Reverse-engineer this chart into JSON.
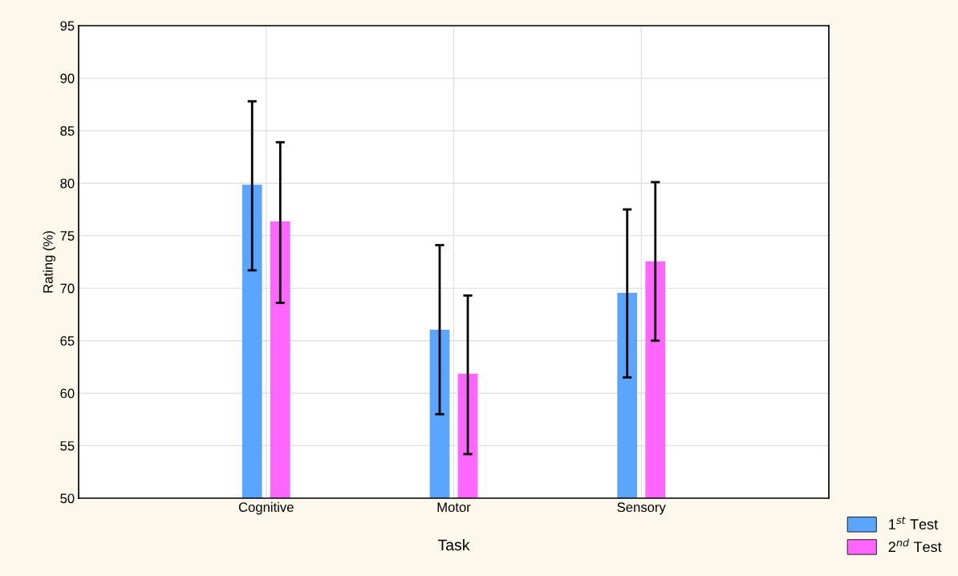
{
  "chart_data": {
    "type": "bar",
    "xlabel": "Task",
    "ylabel": "Rating (%)",
    "categories": [
      "Cognitive",
      "Motor",
      "Sensory"
    ],
    "series": [
      {
        "name": "1$^{st}$ Test",
        "color": "#5aa5ff",
        "values": [
          79.8,
          66.0,
          69.5
        ],
        "errors": [
          [
            71.7,
            87.8
          ],
          [
            58.0,
            74.1
          ],
          [
            61.5,
            77.5
          ]
        ]
      },
      {
        "name": "2$^{nd}$ Test",
        "color": "#ff66ff",
        "values": [
          76.3,
          61.8,
          72.5
        ],
        "errors": [
          [
            68.6,
            83.9
          ],
          [
            54.2,
            69.3
          ],
          [
            65.0,
            80.1
          ]
        ]
      }
    ],
    "ylim": [
      50,
      95
    ],
    "yticks": [
      50,
      55,
      60,
      65,
      70,
      75,
      80,
      85,
      90,
      95
    ],
    "grid": true,
    "legend": "bottom right"
  }
}
